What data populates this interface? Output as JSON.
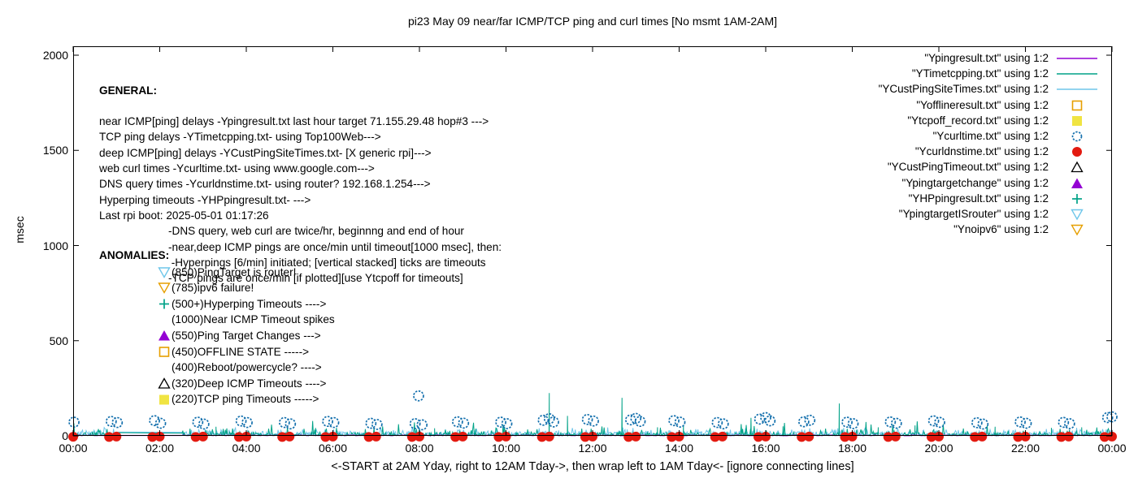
{
  "title": "pi23 May 09  near/far ICMP/TCP ping and curl times [No msmt 1AM-2AM]",
  "axes": {
    "ylabel": "msec",
    "y_tick_labels": [
      "0",
      "500",
      "1000",
      "1500",
      "2000"
    ],
    "y_tick_values": [
      0,
      500,
      1000,
      1500,
      2000
    ],
    "x_tick_labels": [
      "00:00",
      "02:00",
      "04:00",
      "06:00",
      "08:00",
      "10:00",
      "12:00",
      "14:00",
      "16:00",
      "18:00",
      "20:00",
      "22:00",
      "00:00"
    ],
    "x_tick_hours": [
      0,
      2,
      4,
      6,
      8,
      10,
      12,
      14,
      16,
      18,
      20,
      22,
      24
    ],
    "caption": "<-START at 2AM Yday, right to 12AM Tday->, then wrap left to 1AM Tday<- [ignore connecting lines]"
  },
  "general": {
    "heading": "GENERAL:",
    "lines": [
      "near ICMP[ping] delays -Ypingresult.txt last hour target 71.155.29.48 hop#3 --->",
      "TCP ping delays -YTimetcpping.txt- using Top100Web--->",
      "deep ICMP[ping] delays -YCustPingSiteTimes.txt- [X generic rpi]--->",
      "web curl times -Ycurltime.txt- using www.google.com--->",
      "DNS query times -Ycurldnstime.txt- using router? 192.168.1.254--->",
      "Hyperping timeouts -YHPpingresult.txt- --->",
      "Last rpi boot: 2025-05-01 01:17:26"
    ],
    "notes": [
      "-DNS query, web curl are twice/hr, beginnng and end of hour",
      "-near,deep ICMP pings are once/min until timeout[1000 msec], then:",
      " -Hyperpings [6/min] initiated; [vertical stacked] ticks are timeouts",
      "-TCP pings are once/min [if plotted][use Ytcpoff for timeouts]"
    ]
  },
  "anomalies": {
    "heading": "ANOMALIES:",
    "items": [
      {
        "icon": "triangle-down-open",
        "color": "#6ec6ea",
        "label": "(850)PingTarget is router!"
      },
      {
        "icon": "triangle-down-open",
        "color": "#e69f00",
        "label": "(785)ipv6 failure!"
      },
      {
        "icon": "plus",
        "color": "#00a287",
        "label": "(500+)Hyperping Timeouts ---->"
      },
      {
        "icon": "none",
        "color": "",
        "label": "(1000)Near ICMP Timeout spikes"
      },
      {
        "icon": "triangle-up-filled",
        "color": "#9400d3",
        "label": "(550)Ping Target Changes --->"
      },
      {
        "icon": "square-open",
        "color": "#e69f00",
        "label": "(450)OFFLINE STATE ----->"
      },
      {
        "icon": "none",
        "color": "",
        "label": "(400)Reboot/powercycle? ---->"
      },
      {
        "icon": "triangle-up-open",
        "color": "#000000",
        "label": "(320)Deep ICMP Timeouts ---->"
      },
      {
        "icon": "square-filled",
        "color": "#f0e442",
        "label": "(220)TCP ping Timeouts ----->"
      }
    ]
  },
  "legend": {
    "items": [
      {
        "label": "\"Ypingresult.txt\" using 1:2",
        "marker": "line",
        "color": "#9400d3"
      },
      {
        "label": "\"YTimetcpping.txt\" using 1:2",
        "marker": "line",
        "color": "#00a287"
      },
      {
        "label": "\"YCustPingSiteTimes.txt\" using 1:2",
        "marker": "line",
        "color": "#6ec6ea"
      },
      {
        "label": "\"Yofflineresult.txt\" using 1:2",
        "marker": "square-open",
        "color": "#e69f00"
      },
      {
        "label": "\"Ytcpoff_record.txt\" using 1:2",
        "marker": "square-filled",
        "color": "#f0e442"
      },
      {
        "label": "\"Ycurltime.txt\" using 1:2",
        "marker": "circle-open",
        "color": "#1470ad"
      },
      {
        "label": "\"Ycurldnstime.txt\" using 1:2",
        "marker": "circle-filled",
        "color": "#e31a10"
      },
      {
        "label": "\"YCustPingTimeout.txt\" using 1:2",
        "marker": "triangle-up-open",
        "color": "#000000"
      },
      {
        "label": "\"Ypingtargetchange\" using 1:2",
        "marker": "triangle-up-filled",
        "color": "#9400d3"
      },
      {
        "label": "\"YHPpingresult.txt\" using 1:2",
        "marker": "plus",
        "color": "#00a287"
      },
      {
        "label": "\"YpingtargetISrouter\" using 1:2",
        "marker": "triangle-down-open",
        "color": "#6ec6ea"
      },
      {
        "label": "\"Ynoipv6\" using 1:2",
        "marker": "triangle-down-open",
        "color": "#e69f00"
      }
    ]
  },
  "chart_data": {
    "type": "line",
    "title": "pi23 May 09  near/far ICMP/TCP ping and curl times [No msmt 1AM-2AM]",
    "xlabel": "<-START at 2AM Yday, right to 12AM Tday->, then wrap left to 1AM Tday<- [ignore connecting lines]",
    "ylabel": "msec",
    "xlim_hours": [
      0,
      24
    ],
    "ylim": [
      0,
      2000
    ],
    "grid": false,
    "legend_position": "top-right-inside",
    "measurement_gap_hours": [
      1.0,
      2.5
    ],
    "series": [
      {
        "name": "Ypingresult.txt",
        "role": "near-icmp-ping-delay",
        "style": "line",
        "color": "#9400d3",
        "noise": {
          "base_min": 1,
          "base_max": 4,
          "step_minutes": 2
        }
      },
      {
        "name": "YTimetcpping.txt",
        "role": "tcp-ping-delay",
        "style": "line",
        "color": "#00a287",
        "noise": {
          "base_min": 1,
          "base_max": 18,
          "occasional_max": 80,
          "step_minutes": 1
        },
        "gap_bridge": {
          "from": [
            1.0,
            2
          ],
          "to": [
            2.5,
            22
          ]
        },
        "spikes": [
          [
            3.3,
            48
          ],
          [
            5.6,
            42
          ],
          [
            8.35,
            40
          ],
          [
            9.3,
            38
          ],
          [
            11.0,
            225
          ],
          [
            11.42,
            105
          ],
          [
            12.68,
            200
          ],
          [
            13.5,
            45
          ],
          [
            14.1,
            58
          ],
          [
            15.66,
            95
          ],
          [
            16.4,
            50
          ],
          [
            17.7,
            170
          ],
          [
            18.6,
            45
          ],
          [
            19.45,
            55
          ],
          [
            21.3,
            48
          ],
          [
            22.6,
            42
          ],
          [
            23.3,
            45
          ]
        ]
      },
      {
        "name": "YCustPingSiteTimes.txt",
        "role": "deep-icmp-ping-delay",
        "style": "line",
        "color": "#6ec6ea",
        "noise": {
          "base_min": 2,
          "base_max": 34,
          "occasional_max": 44,
          "step_minutes": 1
        },
        "gap_bridge": {
          "from": [
            1.0,
            35
          ],
          "to": [
            2.5,
            35
          ]
        }
      },
      {
        "name": "Ycurltime.txt",
        "role": "web-curl-times",
        "style": "circle-open",
        "color": "#1470ad",
        "points": [
          [
            0.02,
            72
          ],
          [
            0.88,
            76
          ],
          [
            1.02,
            70
          ],
          [
            1.88,
            80
          ],
          [
            2.02,
            66
          ],
          [
            2.88,
            72
          ],
          [
            3.02,
            62
          ],
          [
            3.88,
            78
          ],
          [
            4.02,
            70
          ],
          [
            4.88,
            70
          ],
          [
            5.02,
            63
          ],
          [
            5.88,
            76
          ],
          [
            6.02,
            70
          ],
          [
            6.88,
            66
          ],
          [
            7.02,
            60
          ],
          [
            7.9,
            64
          ],
          [
            7.98,
            210
          ],
          [
            8.06,
            58
          ],
          [
            8.88,
            74
          ],
          [
            9.02,
            67
          ],
          [
            9.88,
            72
          ],
          [
            10.02,
            64
          ],
          [
            10.86,
            82
          ],
          [
            11.0,
            90
          ],
          [
            11.1,
            73
          ],
          [
            11.88,
            86
          ],
          [
            12.02,
            78
          ],
          [
            12.88,
            84
          ],
          [
            13.0,
            92
          ],
          [
            13.1,
            76
          ],
          [
            13.88,
            80
          ],
          [
            14.02,
            72
          ],
          [
            14.88,
            70
          ],
          [
            15.02,
            63
          ],
          [
            15.86,
            88
          ],
          [
            16.0,
            96
          ],
          [
            16.1,
            79
          ],
          [
            16.88,
            74
          ],
          [
            17.02,
            82
          ],
          [
            17.88,
            72
          ],
          [
            18.02,
            64
          ],
          [
            18.88,
            73
          ],
          [
            19.02,
            66
          ],
          [
            19.88,
            79
          ],
          [
            20.02,
            71
          ],
          [
            20.88,
            69
          ],
          [
            21.02,
            62
          ],
          [
            21.88,
            73
          ],
          [
            22.02,
            66
          ],
          [
            22.88,
            71
          ],
          [
            23.02,
            64
          ],
          [
            23.9,
            96
          ],
          [
            24.0,
            100
          ]
        ]
      },
      {
        "name": "Ycurldnstime.txt",
        "role": "dns-query-times",
        "style": "circle-filled",
        "color": "#e31a10",
        "points": [
          [
            0.0,
            8
          ],
          [
            0.83,
            7
          ],
          [
            1.0,
            9
          ],
          [
            1.83,
            7
          ],
          [
            2.0,
            9
          ],
          [
            2.83,
            7
          ],
          [
            3.0,
            9
          ],
          [
            3.83,
            7
          ],
          [
            4.0,
            9
          ],
          [
            4.83,
            7
          ],
          [
            5.0,
            9
          ],
          [
            5.83,
            7
          ],
          [
            6.0,
            9
          ],
          [
            6.83,
            7
          ],
          [
            7.0,
            9
          ],
          [
            7.83,
            7
          ],
          [
            8.0,
            9
          ],
          [
            8.83,
            7
          ],
          [
            9.0,
            9
          ],
          [
            9.83,
            7
          ],
          [
            10.0,
            9
          ],
          [
            10.83,
            7
          ],
          [
            11.0,
            9
          ],
          [
            11.83,
            7
          ],
          [
            12.0,
            9
          ],
          [
            12.83,
            7
          ],
          [
            13.0,
            9
          ],
          [
            13.83,
            7
          ],
          [
            14.0,
            9
          ],
          [
            14.83,
            7
          ],
          [
            15.0,
            9
          ],
          [
            15.83,
            7
          ],
          [
            16.0,
            9
          ],
          [
            16.83,
            7
          ],
          [
            17.0,
            9
          ],
          [
            17.83,
            7
          ],
          [
            18.0,
            9
          ],
          [
            18.83,
            7
          ],
          [
            19.0,
            9
          ],
          [
            19.83,
            7
          ],
          [
            20.0,
            9
          ],
          [
            20.83,
            7
          ],
          [
            21.0,
            9
          ],
          [
            21.83,
            7
          ],
          [
            22.0,
            9
          ],
          [
            22.83,
            7
          ],
          [
            23.0,
            9
          ],
          [
            23.83,
            7
          ],
          [
            24.0,
            9
          ]
        ]
      },
      {
        "name": "Yofflineresult.txt",
        "role": "offline-state-markers",
        "style": "square-open",
        "color": "#e69f00",
        "points": []
      },
      {
        "name": "Ytcpoff_record.txt",
        "role": "tcp-timeout-markers",
        "style": "square-filled",
        "color": "#f0e442",
        "points": []
      },
      {
        "name": "YCustPingTimeout.txt",
        "role": "deep-icmp-timeout-markers",
        "style": "triangle-up-open",
        "color": "#000000",
        "points": []
      },
      {
        "name": "Ypingtargetchange",
        "role": "ping-target-change-markers",
        "style": "triangle-up-filled",
        "color": "#9400d3",
        "points": []
      },
      {
        "name": "YHPpingresult.txt",
        "role": "hyperping-timeout-markers",
        "style": "plus",
        "color": "#00a287",
        "points": []
      },
      {
        "name": "YpingtargetISrouter",
        "role": "pingtarget-is-router-markers",
        "style": "triangle-down-open",
        "color": "#6ec6ea",
        "points": []
      },
      {
        "name": "Ynoipv6",
        "role": "ipv6-failure-markers",
        "style": "triangle-down-open",
        "color": "#e69f00",
        "points": []
      }
    ]
  }
}
